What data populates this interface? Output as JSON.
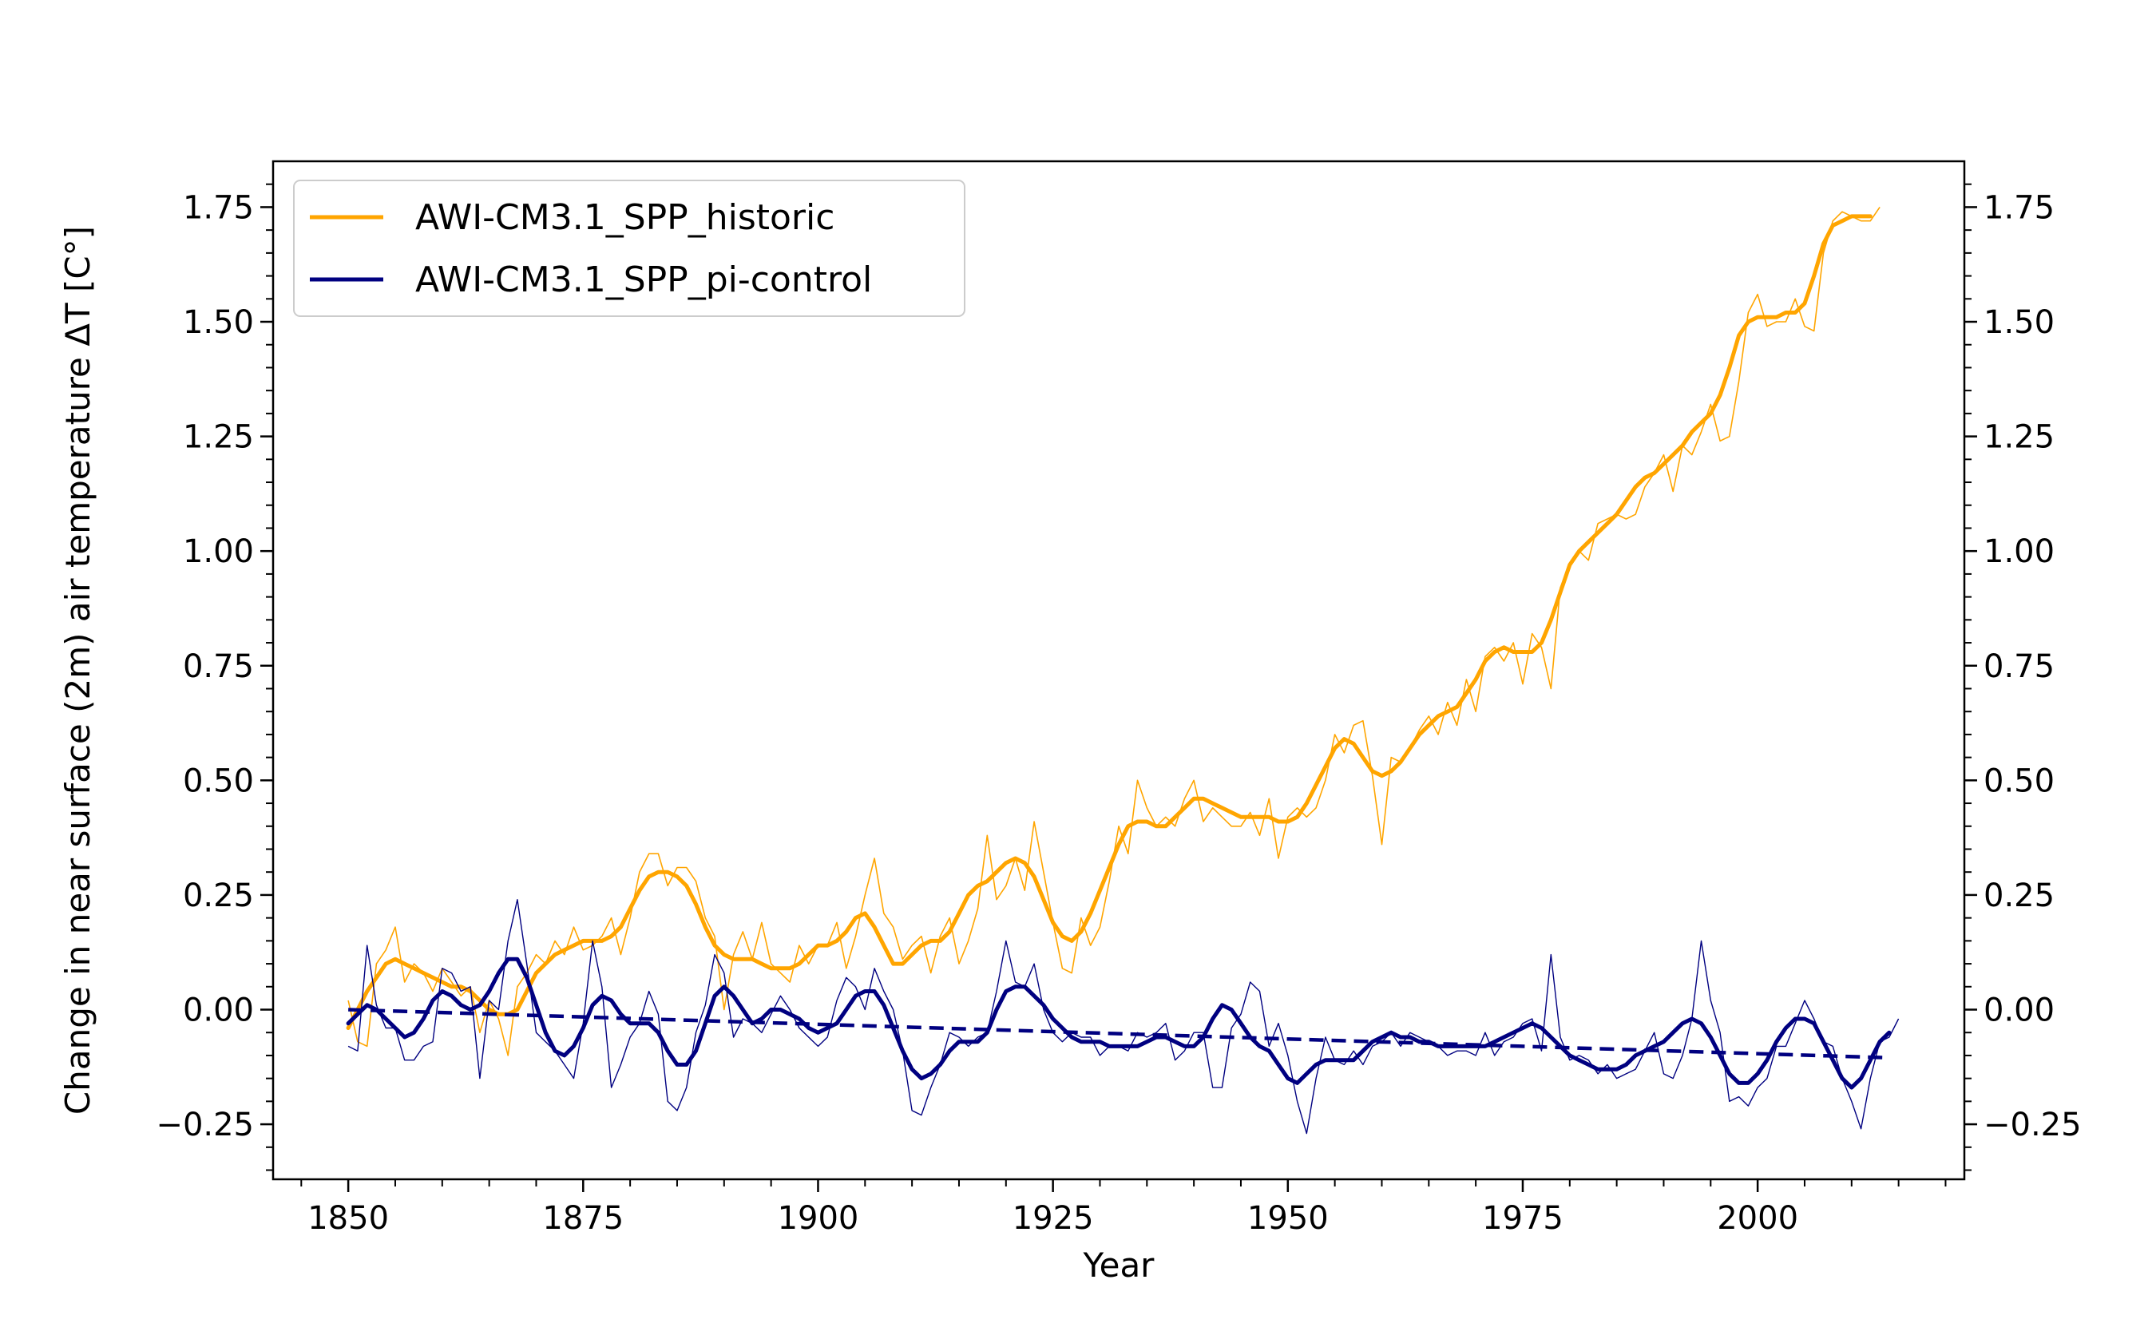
{
  "chart_data": {
    "type": "line",
    "xlabel": "Year",
    "ylabel": "Change in near surface (2m) air temperature ΔT [C°]",
    "xlim": [
      1842,
      2022
    ],
    "ylim": [
      -0.37,
      1.85
    ],
    "x_ticks": [
      1850,
      1875,
      1900,
      1925,
      1950,
      1975,
      2000
    ],
    "y_ticks_left": [
      -0.25,
      0.0,
      0.25,
      0.5,
      0.75,
      1.0,
      1.25,
      1.5,
      1.75
    ],
    "y_ticks_right": [
      -0.25,
      0.0,
      0.25,
      0.5,
      0.75,
      1.0,
      1.25,
      1.5,
      1.75
    ],
    "grid": false,
    "legend_position": "top-left",
    "x_start_year": 1850,
    "series": [
      {
        "name": "AWI-CM3.1_SPP_historic",
        "color": "#FFA500",
        "annual": [
          0.02,
          -0.07,
          -0.08,
          0.1,
          0.13,
          0.18,
          0.06,
          0.1,
          0.08,
          0.04,
          0.09,
          0.06,
          0.03,
          0.05,
          -0.05,
          0.02,
          -0.02,
          -0.1,
          0.05,
          0.08,
          0.12,
          0.1,
          0.15,
          0.12,
          0.18,
          0.13,
          0.14,
          0.16,
          0.2,
          0.12,
          0.2,
          0.3,
          0.34,
          0.34,
          0.27,
          0.31,
          0.31,
          0.28,
          0.2,
          0.16,
          0.0,
          0.12,
          0.17,
          0.11,
          0.19,
          0.1,
          0.08,
          0.06,
          0.14,
          0.1,
          0.14,
          0.14,
          0.19,
          0.09,
          0.16,
          0.25,
          0.33,
          0.21,
          0.18,
          0.11,
          0.14,
          0.16,
          0.08,
          0.16,
          0.2,
          0.1,
          0.15,
          0.22,
          0.38,
          0.24,
          0.27,
          0.33,
          0.26,
          0.41,
          0.3,
          0.19,
          0.09,
          0.08,
          0.2,
          0.14,
          0.18,
          0.28,
          0.4,
          0.34,
          0.5,
          0.44,
          0.4,
          0.42,
          0.4,
          0.46,
          0.5,
          0.41,
          0.44,
          0.42,
          0.4,
          0.4,
          0.43,
          0.38,
          0.46,
          0.33,
          0.42,
          0.44,
          0.42,
          0.44,
          0.5,
          0.6,
          0.56,
          0.62,
          0.63,
          0.51,
          0.36,
          0.55,
          0.54,
          0.57,
          0.61,
          0.64,
          0.6,
          0.67,
          0.62,
          0.72,
          0.65,
          0.77,
          0.79,
          0.76,
          0.8,
          0.71,
          0.82,
          0.79,
          0.7,
          0.92,
          0.97,
          1.0,
          0.98,
          1.06,
          1.07,
          1.08,
          1.07,
          1.08,
          1.14,
          1.17,
          1.21,
          1.13,
          1.23,
          1.21,
          1.26,
          1.32,
          1.24,
          1.25,
          1.37,
          1.52,
          1.56,
          1.49,
          1.5,
          1.5,
          1.55,
          1.49,
          1.48,
          1.65,
          1.72,
          1.74,
          1.73,
          1.72,
          1.72,
          1.75
        ],
        "smoothed": [
          -0.04,
          0.0,
          0.04,
          0.07,
          0.1,
          0.11,
          0.1,
          0.09,
          0.08,
          0.07,
          0.06,
          0.05,
          0.05,
          0.04,
          0.02,
          0.0,
          -0.01,
          -0.01,
          0.0,
          0.04,
          0.08,
          0.1,
          0.12,
          0.13,
          0.14,
          0.15,
          0.15,
          0.15,
          0.16,
          0.18,
          0.22,
          0.26,
          0.29,
          0.3,
          0.3,
          0.29,
          0.27,
          0.23,
          0.18,
          0.14,
          0.12,
          0.11,
          0.11,
          0.11,
          0.1,
          0.09,
          0.09,
          0.09,
          0.1,
          0.12,
          0.14,
          0.14,
          0.15,
          0.17,
          0.2,
          0.21,
          0.18,
          0.14,
          0.1,
          0.1,
          0.12,
          0.14,
          0.15,
          0.15,
          0.17,
          0.21,
          0.25,
          0.27,
          0.28,
          0.3,
          0.32,
          0.33,
          0.32,
          0.29,
          0.24,
          0.19,
          0.16,
          0.15,
          0.17,
          0.21,
          0.26,
          0.31,
          0.36,
          0.4,
          0.41,
          0.41,
          0.4,
          0.4,
          0.42,
          0.44,
          0.46,
          0.46,
          0.45,
          0.44,
          0.43,
          0.42,
          0.42,
          0.42,
          0.42,
          0.41,
          0.41,
          0.42,
          0.45,
          0.49,
          0.53,
          0.57,
          0.59,
          0.58,
          0.55,
          0.52,
          0.51,
          0.52,
          0.54,
          0.57,
          0.6,
          0.62,
          0.64,
          0.65,
          0.66,
          0.69,
          0.72,
          0.76,
          0.78,
          0.79,
          0.78,
          0.78,
          0.78,
          0.8,
          0.85,
          0.91,
          0.97,
          1.0,
          1.02,
          1.04,
          1.06,
          1.08,
          1.11,
          1.14,
          1.16,
          1.17,
          1.19,
          1.21,
          1.23,
          1.26,
          1.28,
          1.3,
          1.34,
          1.4,
          1.47,
          1.5,
          1.51,
          1.51,
          1.51,
          1.52,
          1.52,
          1.54,
          1.6,
          1.67,
          1.71,
          1.72,
          1.73,
          1.73,
          1.73
        ]
      },
      {
        "name": "AWI-CM3.1_SPP_pi-control",
        "color": "#000080",
        "annual": [
          -0.08,
          -0.09,
          0.14,
          0.01,
          -0.04,
          -0.04,
          -0.11,
          -0.11,
          -0.08,
          -0.07,
          0.09,
          0.08,
          0.04,
          0.05,
          -0.15,
          0.02,
          0.0,
          0.15,
          0.24,
          0.1,
          -0.05,
          -0.07,
          -0.09,
          -0.12,
          -0.15,
          -0.03,
          0.15,
          0.05,
          -0.17,
          -0.12,
          -0.06,
          -0.03,
          0.04,
          -0.01,
          -0.2,
          -0.22,
          -0.17,
          -0.05,
          0.01,
          0.12,
          0.08,
          -0.06,
          -0.02,
          -0.03,
          -0.05,
          -0.01,
          0.03,
          0.0,
          -0.04,
          -0.06,
          -0.08,
          -0.06,
          0.02,
          0.07,
          0.05,
          0.0,
          0.09,
          0.04,
          0.0,
          -0.09,
          -0.22,
          -0.23,
          -0.17,
          -0.12,
          -0.05,
          -0.06,
          -0.08,
          -0.06,
          -0.05,
          0.04,
          0.15,
          0.06,
          0.05,
          0.1,
          0.0,
          -0.05,
          -0.07,
          -0.05,
          -0.06,
          -0.06,
          -0.1,
          -0.08,
          -0.08,
          -0.09,
          -0.05,
          -0.06,
          -0.05,
          -0.03,
          -0.11,
          -0.09,
          -0.05,
          -0.05,
          -0.17,
          -0.17,
          -0.04,
          -0.01,
          0.06,
          0.04,
          -0.08,
          -0.03,
          -0.1,
          -0.2,
          -0.27,
          -0.15,
          -0.06,
          -0.11,
          -0.12,
          -0.09,
          -0.12,
          -0.08,
          -0.07,
          -0.05,
          -0.08,
          -0.05,
          -0.06,
          -0.07,
          -0.08,
          -0.1,
          -0.09,
          -0.09,
          -0.1,
          -0.05,
          -0.1,
          -0.07,
          -0.06,
          -0.03,
          -0.02,
          -0.09,
          0.12,
          -0.06,
          -0.11,
          -0.1,
          -0.11,
          -0.14,
          -0.12,
          -0.15,
          -0.14,
          -0.13,
          -0.09,
          -0.05,
          -0.14,
          -0.15,
          -0.1,
          -0.02,
          0.15,
          0.02,
          -0.05,
          -0.2,
          -0.19,
          -0.21,
          -0.17,
          -0.15,
          -0.08,
          -0.08,
          -0.03,
          0.02,
          -0.02,
          -0.07,
          -0.08,
          -0.15,
          -0.2,
          -0.26,
          -0.15,
          -0.07,
          -0.06,
          -0.02
        ],
        "smoothed": [
          -0.03,
          -0.01,
          0.01,
          0.0,
          -0.02,
          -0.04,
          -0.06,
          -0.05,
          -0.02,
          0.02,
          0.04,
          0.03,
          0.01,
          0.0,
          0.01,
          0.04,
          0.08,
          0.11,
          0.11,
          0.07,
          0.01,
          -0.05,
          -0.09,
          -0.1,
          -0.08,
          -0.04,
          0.01,
          0.03,
          0.02,
          -0.01,
          -0.03,
          -0.03,
          -0.03,
          -0.05,
          -0.09,
          -0.12,
          -0.12,
          -0.09,
          -0.03,
          0.03,
          0.05,
          0.03,
          0.0,
          -0.03,
          -0.02,
          0.0,
          0.0,
          -0.01,
          -0.02,
          -0.04,
          -0.05,
          -0.04,
          -0.03,
          0.0,
          0.03,
          0.04,
          0.04,
          0.01,
          -0.04,
          -0.09,
          -0.13,
          -0.15,
          -0.14,
          -0.12,
          -0.09,
          -0.07,
          -0.07,
          -0.07,
          -0.05,
          0.0,
          0.04,
          0.05,
          0.05,
          0.03,
          0.01,
          -0.02,
          -0.04,
          -0.06,
          -0.07,
          -0.07,
          -0.07,
          -0.08,
          -0.08,
          -0.08,
          -0.08,
          -0.07,
          -0.06,
          -0.06,
          -0.07,
          -0.08,
          -0.08,
          -0.06,
          -0.02,
          0.01,
          0.0,
          -0.03,
          -0.06,
          -0.08,
          -0.09,
          -0.12,
          -0.15,
          -0.16,
          -0.14,
          -0.12,
          -0.11,
          -0.11,
          -0.11,
          -0.11,
          -0.09,
          -0.07,
          -0.06,
          -0.05,
          -0.06,
          -0.06,
          -0.07,
          -0.07,
          -0.08,
          -0.08,
          -0.08,
          -0.08,
          -0.08,
          -0.08,
          -0.07,
          -0.06,
          -0.05,
          -0.04,
          -0.03,
          -0.04,
          -0.06,
          -0.08,
          -0.1,
          -0.11,
          -0.12,
          -0.13,
          -0.13,
          -0.13,
          -0.12,
          -0.1,
          -0.09,
          -0.08,
          -0.07,
          -0.05,
          -0.03,
          -0.02,
          -0.03,
          -0.06,
          -0.1,
          -0.14,
          -0.16,
          -0.16,
          -0.14,
          -0.11,
          -0.07,
          -0.04,
          -0.02,
          -0.02,
          -0.03,
          -0.07,
          -0.11,
          -0.15,
          -0.17,
          -0.15,
          -0.11,
          -0.07,
          -0.05
        ],
        "trend": [
          0.0,
          -0.105
        ],
        "trend_x": [
          1850,
          2014
        ]
      }
    ]
  }
}
